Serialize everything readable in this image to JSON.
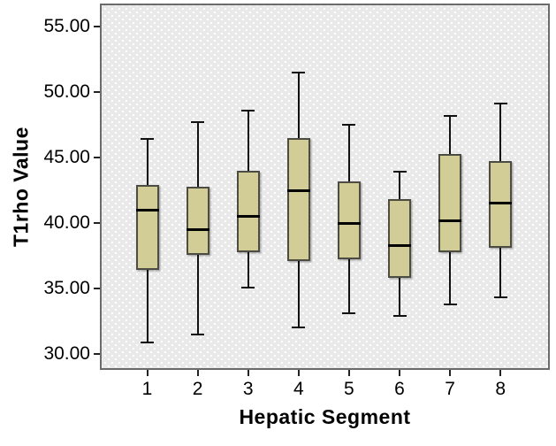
{
  "chart_data": {
    "type": "boxplot",
    "xlabel": "Hepatic Segment",
    "ylabel": "T1rho Value",
    "categories": [
      "1",
      "2",
      "3",
      "4",
      "5",
      "6",
      "7",
      "8"
    ],
    "yticks": [
      {
        "value": 30,
        "label": "30.00"
      },
      {
        "value": 35,
        "label": "35.00"
      },
      {
        "value": 40,
        "label": "40.00"
      },
      {
        "value": 45,
        "label": "45.00"
      },
      {
        "value": 50,
        "label": "50.00"
      },
      {
        "value": 55,
        "label": "55.00"
      }
    ],
    "ylim": [
      28.8,
      56.8
    ],
    "grid": false,
    "legend": "none",
    "boxes": [
      {
        "category": "1",
        "whisker_low": 30.9,
        "q1": 36.4,
        "median": 41.0,
        "q3": 42.9,
        "whisker_high": 46.4
      },
      {
        "category": "2",
        "whisker_low": 31.5,
        "q1": 37.6,
        "median": 39.5,
        "q3": 42.8,
        "whisker_high": 47.7
      },
      {
        "category": "3",
        "whisker_low": 35.1,
        "q1": 37.8,
        "median": 40.5,
        "q3": 44.0,
        "whisker_high": 48.6
      },
      {
        "category": "4",
        "whisker_low": 32.0,
        "q1": 37.1,
        "median": 42.5,
        "q3": 46.5,
        "whisker_high": 51.5
      },
      {
        "category": "5",
        "whisker_low": 33.1,
        "q1": 37.2,
        "median": 40.0,
        "q3": 43.2,
        "whisker_high": 47.5
      },
      {
        "category": "6",
        "whisker_low": 32.9,
        "q1": 35.8,
        "median": 38.3,
        "q3": 41.8,
        "whisker_high": 43.9
      },
      {
        "category": "7",
        "whisker_low": 33.8,
        "q1": 37.8,
        "median": 40.2,
        "q3": 45.3,
        "whisker_high": 48.2
      },
      {
        "category": "8",
        "whisker_low": 34.3,
        "q1": 38.1,
        "median": 41.5,
        "q3": 44.7,
        "whisker_high": 49.1
      }
    ],
    "colors": {
      "figure_background": "#ffffff",
      "plot_background": "#e9e9e9",
      "dot_pattern": "#ffffff",
      "plot_border": "#6b6b6b",
      "box_fill": "#d2cc96",
      "box_border": "#4d4c42",
      "median": "#000000",
      "whisker": "#111111",
      "tick": "#222222",
      "text": "#000000"
    }
  }
}
